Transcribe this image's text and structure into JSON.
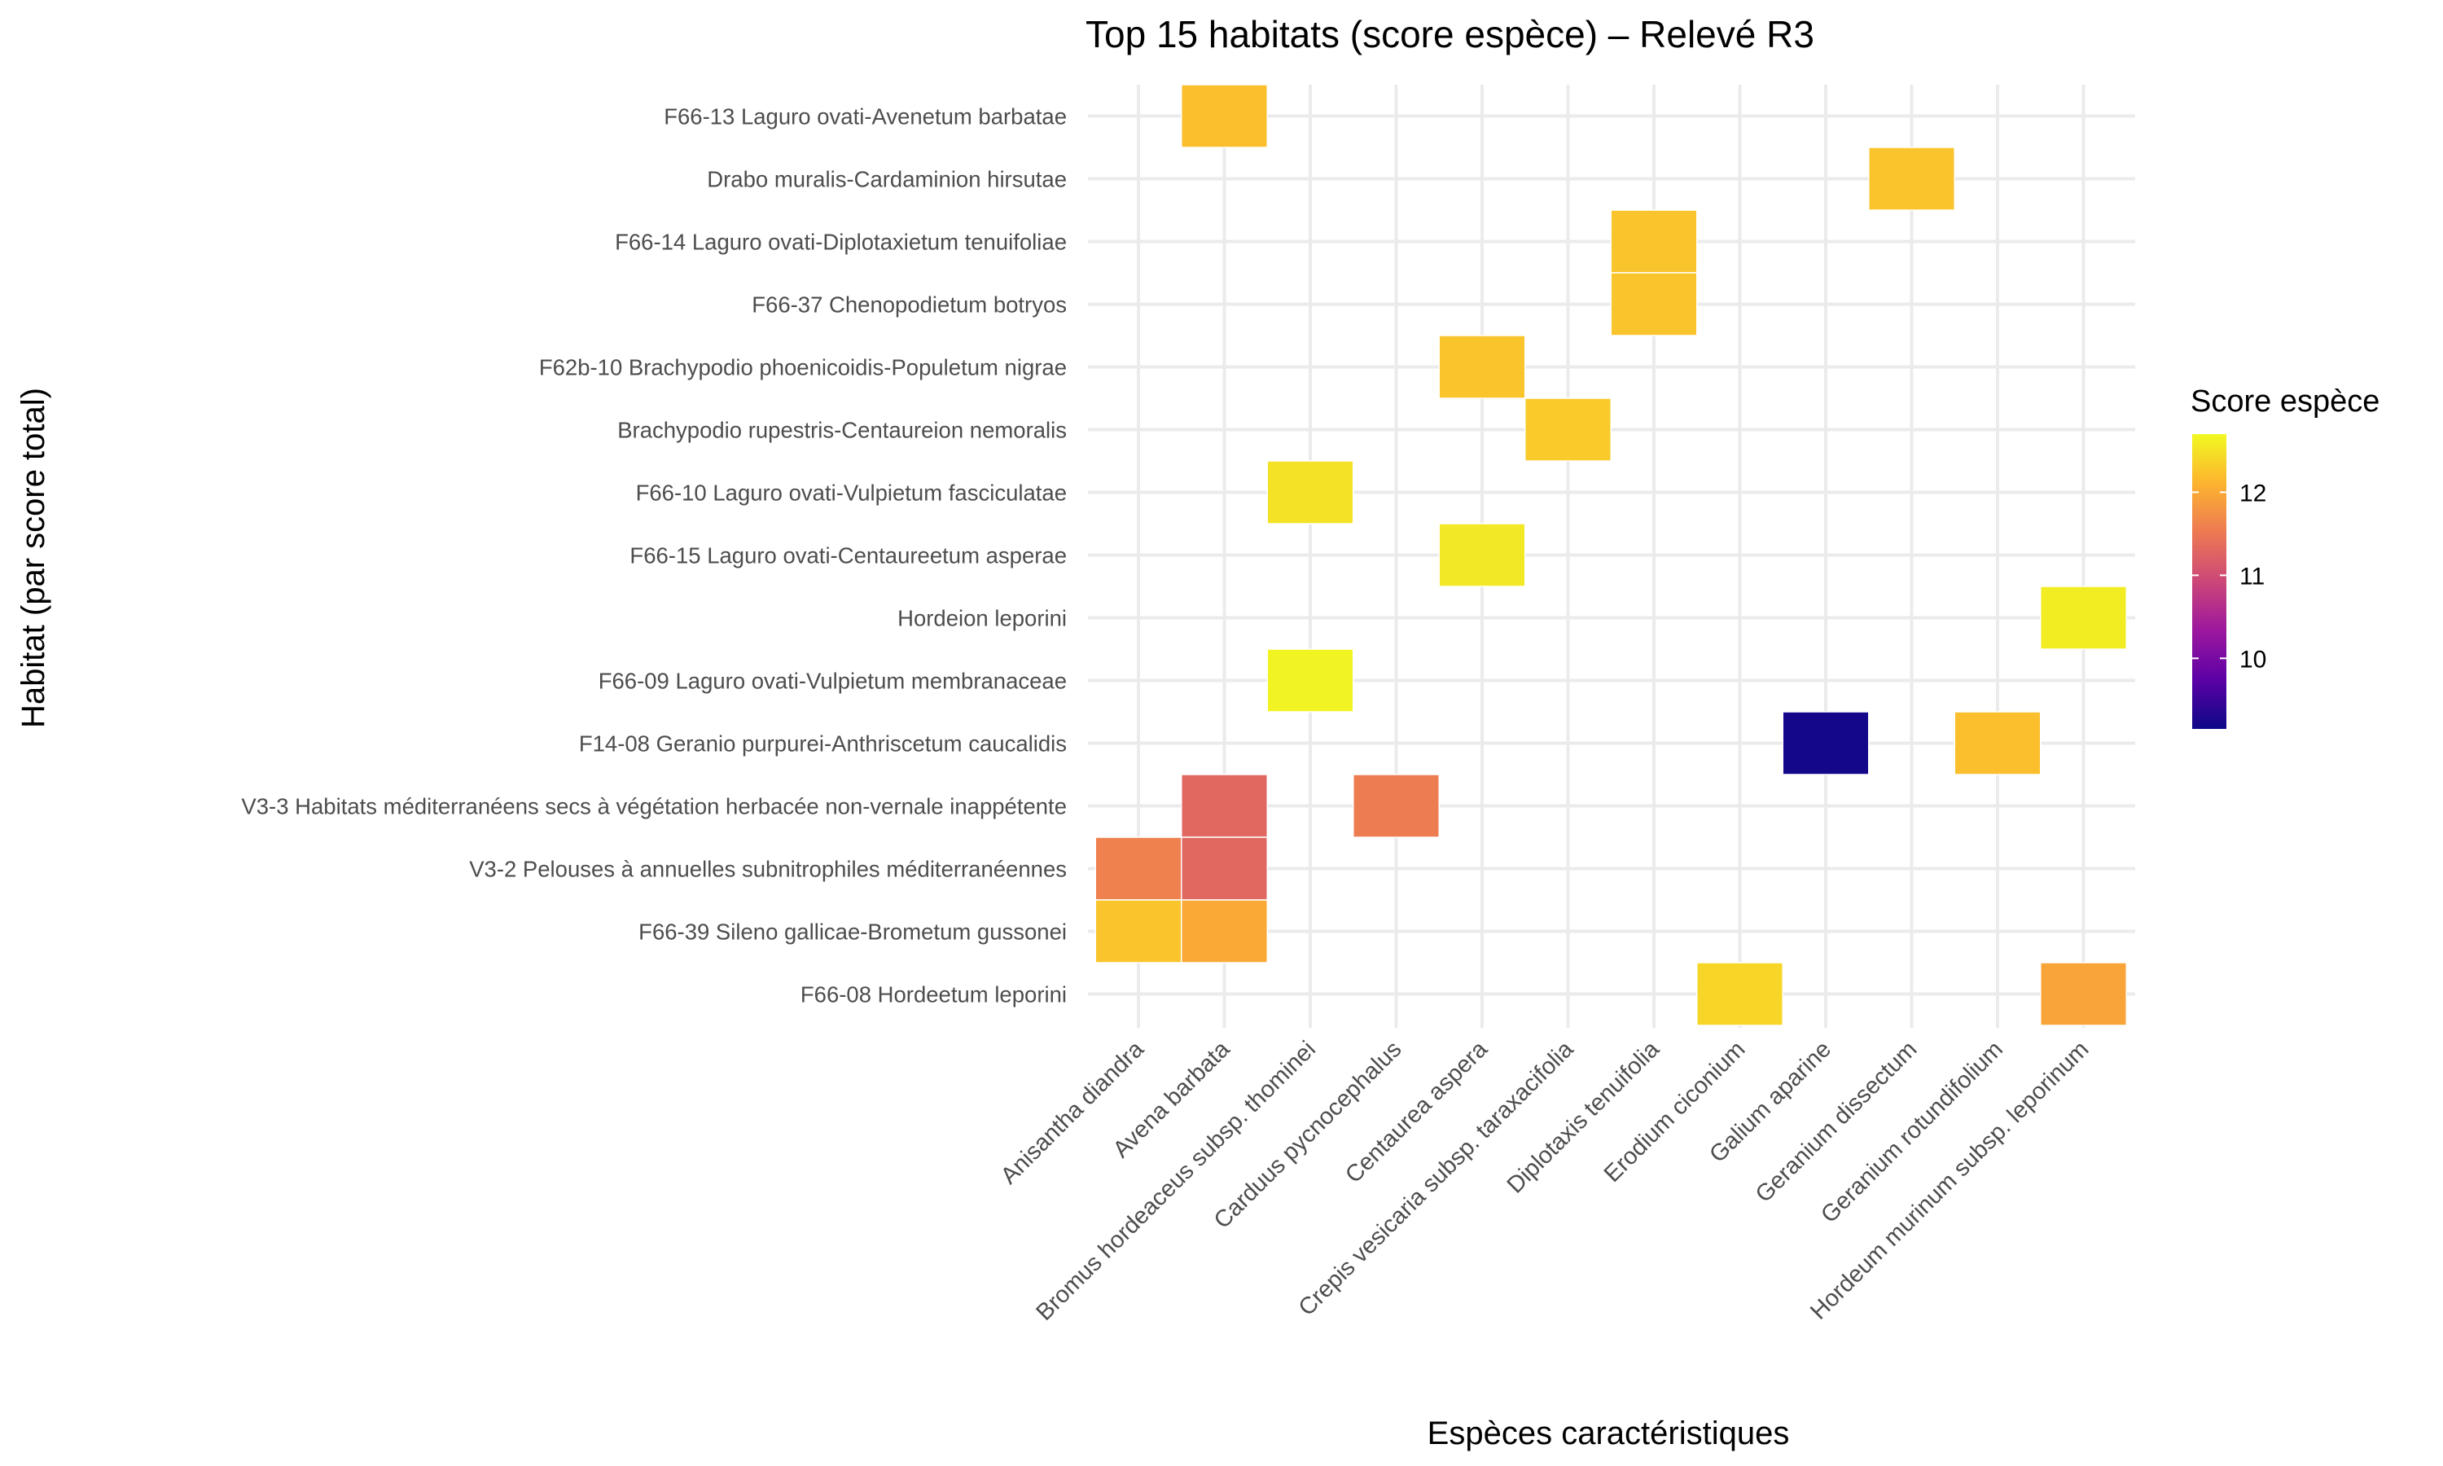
{
  "chart_data": {
    "type": "heatmap",
    "title": "Top 15 habitats (score espèce) – Relevé R3",
    "xlabel": "Espèces caractéristiques",
    "ylabel": "Habitat (par score total)",
    "x_categories": [
      "Anisantha diandra",
      "Avena barbata",
      "Bromus hordeaceus subsp. thominei",
      "Carduus pycnocephalus",
      "Centaurea aspera",
      "Crepis vesicaria subsp. taraxacifolia",
      "Diplotaxis tenuifolia",
      "Erodium ciconium",
      "Galium aparine",
      "Geranium dissectum",
      "Geranium rotundifolium",
      "Hordeum murinum subsp. leporinum"
    ],
    "y_categories": [
      "F66-13 Laguro ovati-Avenetum barbatae",
      "Drabo muralis-Cardaminion hirsutae",
      "F66-14 Laguro ovati-Diplotaxietum tenuifoliae",
      "F66-37 Chenopodietum botryos",
      "F62b-10 Brachypodio phoenicoidis-Populetum nigrae",
      "Brachypodio rupestris-Centaureion nemoralis",
      "F66-10 Laguro ovati-Vulpietum fasciculatae",
      "F66-15 Laguro ovati-Centaureetum asperae",
      "Hordeion leporini",
      "F66-09 Laguro ovati-Vulpietum membranaceae",
      "F14-08 Geranio purpurei-Anthriscetum caucalidis",
      "V3-3 Habitats méditerranéens secs à végétation herbacée non-vernale inappétente",
      "V3-2 Pelouses à annuelles subnitrophiles méditerranéennes",
      "F66-39 Sileno gallicae-Brometum gussonei",
      "F66-08 Hordeetum leporini"
    ],
    "cells": [
      {
        "x": "Avena barbata",
        "y": "F66-13 Laguro ovati-Avenetum barbatae",
        "value": 12.2
      },
      {
        "x": "Geranium dissectum",
        "y": "Drabo muralis-Cardaminion hirsutae",
        "value": 12.25
      },
      {
        "x": "Diplotaxis tenuifolia",
        "y": "F66-14 Laguro ovati-Diplotaxietum tenuifoliae",
        "value": 12.25
      },
      {
        "x": "Diplotaxis tenuifolia",
        "y": "F66-37 Chenopodietum botryos",
        "value": 12.25
      },
      {
        "x": "Centaurea aspera",
        "y": "F62b-10 Brachypodio phoenicoidis-Populetum nigrae",
        "value": 12.25
      },
      {
        "x": "Crepis vesicaria subsp. taraxacifolia",
        "y": "Brachypodio rupestris-Centaureion nemoralis",
        "value": 12.3
      },
      {
        "x": "Bromus hordeaceus subsp. thominei",
        "y": "F66-10 Laguro ovati-Vulpietum fasciculatae",
        "value": 12.5
      },
      {
        "x": "Centaurea aspera",
        "y": "F66-15 Laguro ovati-Centaureetum asperae",
        "value": 12.55
      },
      {
        "x": "Hordeum murinum subsp. leporinum",
        "y": "Hordeion leporini",
        "value": 12.6
      },
      {
        "x": "Bromus hordeaceus subsp. thominei",
        "y": "F66-09 Laguro ovati-Vulpietum membranaceae",
        "value": 12.65
      },
      {
        "x": "Galium aparine",
        "y": "F14-08 Geranio purpurei-Anthriscetum caucalidis",
        "value": 9.2
      },
      {
        "x": "Geranium rotundifolium",
        "y": "F14-08 Geranio purpurei-Anthriscetum caucalidis",
        "value": 12.2
      },
      {
        "x": "Avena barbata",
        "y": "V3-3 Habitats méditerranéens secs à végétation herbacée non-vernale inappétente",
        "value": 11.3
      },
      {
        "x": "Carduus pycnocephalus",
        "y": "V3-3 Habitats méditerranéens secs à végétation herbacée non-vernale inappétente",
        "value": 11.55
      },
      {
        "x": "Anisantha diandra",
        "y": "V3-2 Pelouses à annuelles subnitrophiles méditerranéennes",
        "value": 11.6
      },
      {
        "x": "Avena barbata",
        "y": "V3-2 Pelouses à annuelles subnitrophiles méditerranéennes",
        "value": 11.3
      },
      {
        "x": "Anisantha diandra",
        "y": "F66-39 Sileno gallicae-Brometum gussonei",
        "value": 12.25
      },
      {
        "x": "Avena barbata",
        "y": "F66-39 Sileno gallicae-Brometum gussonei",
        "value": 12.0
      },
      {
        "x": "Erodium ciconium",
        "y": "F66-08 Hordeetum leporini",
        "value": 12.4
      },
      {
        "x": "Hordeum murinum subsp. leporinum",
        "y": "F66-08 Hordeetum leporini",
        "value": 11.95
      }
    ],
    "legend": {
      "title": "Score espèce",
      "placement": "right",
      "min": 9.15,
      "max": 12.7,
      "ticks": [
        10,
        11,
        12
      ],
      "colormap": [
        "#0d0887",
        "#5c01a6",
        "#9c179e",
        "#cc4778",
        "#ed7953",
        "#fdb42f",
        "#f0f921"
      ]
    },
    "grid": true
  }
}
